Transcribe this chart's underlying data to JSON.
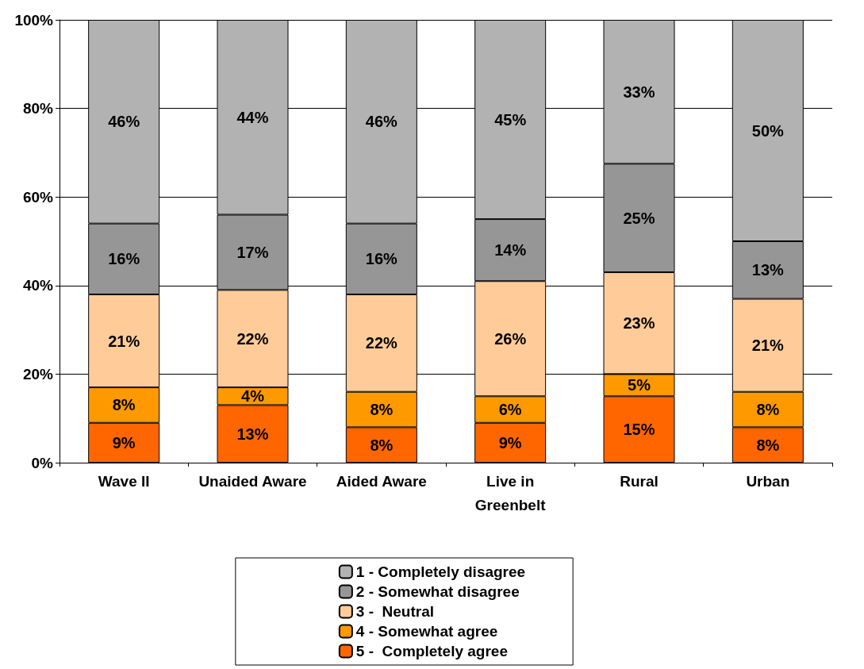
{
  "chart_data": {
    "type": "bar",
    "stacked": true,
    "categories": [
      "Wave II",
      "Unaided Aware",
      "Aided Aware",
      "Live in\nGreenbelt",
      "Rural",
      "Urban"
    ],
    "series": [
      {
        "name": "5 -  Completely agree",
        "color": "#ff6600",
        "values": [
          9,
          13,
          8,
          9,
          15,
          8
        ],
        "value_labels": [
          "9%",
          "13%",
          "8%",
          "9%",
          "15%",
          "8%"
        ]
      },
      {
        "name": "4 - Somewhat agree",
        "color": "#ff9900",
        "values": [
          8,
          4,
          8,
          6,
          5,
          8
        ],
        "value_labels": [
          "8%",
          "4%",
          "8%",
          "6%",
          "5%",
          "8%"
        ]
      },
      {
        "name": "3 -  Neutral",
        "color": "#ffcc99",
        "values": [
          21,
          22,
          22,
          26,
          23,
          21
        ],
        "value_labels": [
          "21%",
          "22%",
          "22%",
          "26%",
          "23%",
          "21%"
        ]
      },
      {
        "name": "2 - Somewhat disagree",
        "color": "#969696",
        "values": [
          16,
          17,
          16,
          14,
          24.5,
          13
        ],
        "value_labels": [
          "16%",
          "17%",
          "16%",
          "14%",
          "25%",
          "13%"
        ]
      },
      {
        "name": "1 - Completely disagree",
        "color": "#b2b2b2",
        "values": [
          46,
          44,
          46,
          45,
          32.5,
          50
        ],
        "value_labels": [
          "46%",
          "44%",
          "46%",
          "45%",
          "33%",
          "50%"
        ]
      }
    ],
    "ylim": [
      0,
      100
    ],
    "yticks": [
      {
        "value": 0,
        "label": "0%"
      },
      {
        "value": 20,
        "label": "20%"
      },
      {
        "value": 40,
        "label": "40%"
      },
      {
        "value": 60,
        "label": "60%"
      },
      {
        "value": 80,
        "label": "80%"
      },
      {
        "value": 100,
        "label": "100%"
      }
    ],
    "grid": "y",
    "legend": "bottom"
  }
}
